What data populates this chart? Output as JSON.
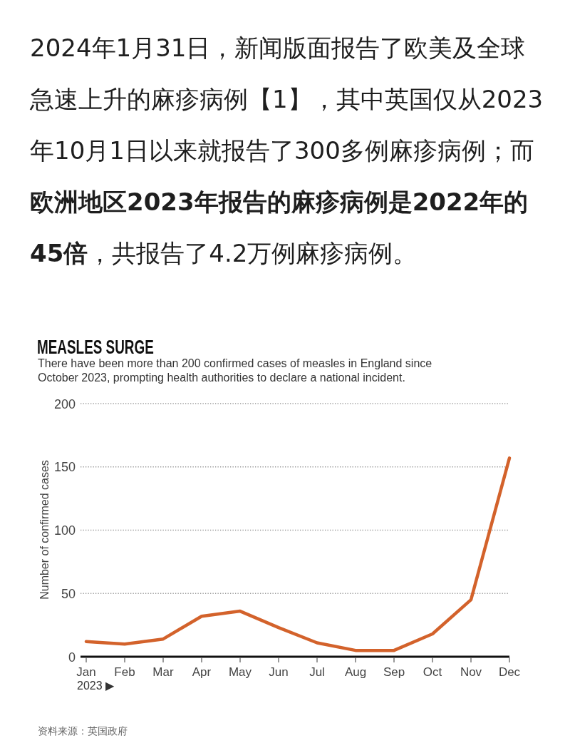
{
  "chart_data": {
    "type": "line",
    "title": "MEASLES SURGE",
    "subtitle": "There have been more than 200 confirmed cases of measles in England since October 2023, prompting health authorities to declare a national incident.",
    "xlabel": "2023 ▶",
    "ylabel": "Number of confirmed cases",
    "categories": [
      "Jan",
      "Feb",
      "Mar",
      "Apr",
      "May",
      "Jun",
      "Jul",
      "Aug",
      "Sep",
      "Oct",
      "Nov",
      "Dec"
    ],
    "series": [
      {
        "color": "#d3622b",
        "values": [
          12,
          10,
          14,
          32,
          36,
          23,
          11,
          5,
          5,
          18,
          45,
          157
        ]
      }
    ],
    "ylim": [
      0,
      200
    ],
    "yticks": [
      0,
      50,
      100,
      150,
      200
    ],
    "grid": "y",
    "annotations": [
      "2024年1月31日，新闻版面报告了欧美及全球急速上升的麻疹病例【1】，其中英国仅从2023年10月1日以来就报告了300多例麻疹病例；而**欧洲地区2023年报告的麻疹病例是2022年的45倍**，共报告了4.2万例麻疹病例。",
      "资料来源：英国政府"
    ]
  }
}
